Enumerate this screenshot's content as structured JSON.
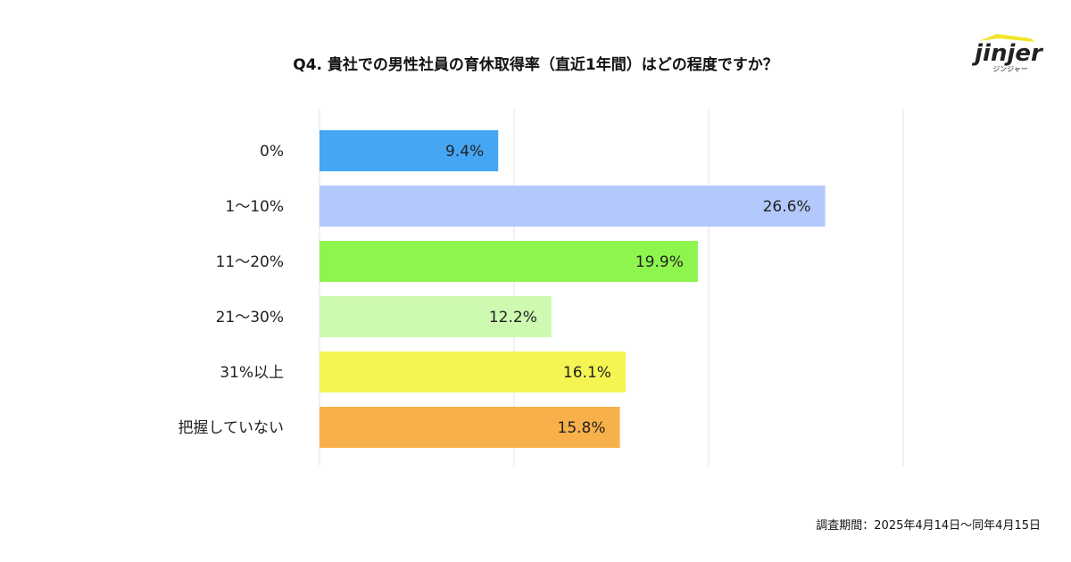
{
  "title": "Q4. 貴社での男性社員の育休取得率（直近1年間）はどの程度ですか？",
  "logo": {
    "text": "jinjer",
    "subtext": "ジンジャー"
  },
  "footnote": "調査期間：2025年4月14日～同年4月15日",
  "chart_data": {
    "type": "bar",
    "orientation": "horizontal",
    "title": "Q4. 貴社での男性社員の育休取得率（直近1年間）はどの程度ですか？",
    "categories": [
      "0%",
      "1〜10%",
      "11〜20%",
      "21〜30%",
      "31%以上",
      "把握していない"
    ],
    "values": [
      9.4,
      26.6,
      19.9,
      12.2,
      16.1,
      15.8
    ],
    "data_labels": [
      "9.4%",
      "26.6%",
      "19.9%",
      "12.2%",
      "16.1%",
      "15.8%"
    ],
    "colors": [
      "#45a6f3",
      "#b3c9fc",
      "#8ef54f",
      "#cdfab0",
      "#f4f552",
      "#f8b04a"
    ],
    "unit": "%",
    "grid": true,
    "legend": "none"
  }
}
